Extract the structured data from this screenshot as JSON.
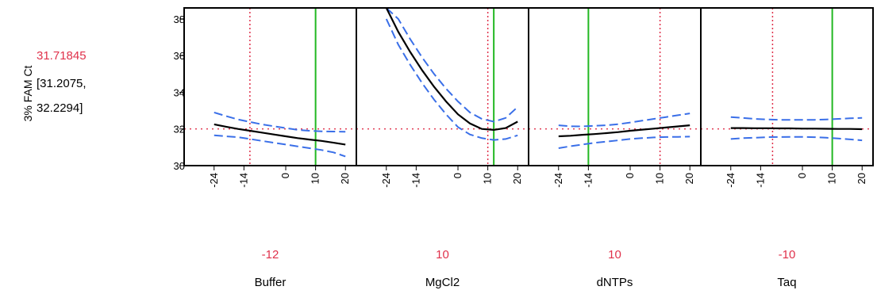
{
  "chart_data": {
    "type": "line",
    "response": {
      "label": "3% FAM Ct",
      "predicted": "31.71845",
      "ci_lower": "[31.2075,",
      "ci_upper": "32.2294]",
      "current_value": 32.0
    },
    "ylim": [
      30,
      38.6
    ],
    "y_ticks": [
      30,
      32,
      34,
      36,
      38
    ],
    "x_ticks": [
      "-24",
      "-14",
      "0",
      "10",
      "20"
    ],
    "xlim": [
      -25,
      21
    ],
    "factors": [
      {
        "name": "Buffer",
        "setting_label": "-12",
        "setting": -12,
        "reference": 10,
        "x": [
          -24,
          -20,
          -16,
          -12,
          -8,
          -4,
          0,
          4,
          8,
          12,
          16,
          20
        ],
        "fit": [
          32.25,
          32.12,
          32.0,
          31.9,
          31.8,
          31.7,
          31.6,
          31.5,
          31.42,
          31.35,
          31.25,
          31.15
        ],
        "upper": [
          32.9,
          32.7,
          32.52,
          32.38,
          32.25,
          32.15,
          32.05,
          31.95,
          31.9,
          31.87,
          31.86,
          31.85
        ],
        "lower": [
          31.65,
          31.6,
          31.55,
          31.45,
          31.35,
          31.25,
          31.15,
          31.05,
          30.95,
          30.85,
          30.72,
          30.5
        ]
      },
      {
        "name": "MgCl2",
        "setting_label": "10",
        "setting": 10,
        "reference": 12,
        "x": [
          -24,
          -20,
          -16,
          -12,
          -8,
          -4,
          0,
          4,
          8,
          12,
          16,
          20
        ],
        "fit": [
          38.6,
          37.3,
          36.2,
          35.2,
          34.3,
          33.5,
          32.8,
          32.3,
          32.0,
          31.95,
          32.05,
          32.4
        ],
        "upper": [
          38.6,
          38.0,
          36.9,
          35.9,
          35.0,
          34.2,
          33.5,
          32.9,
          32.55,
          32.4,
          32.6,
          33.2
        ],
        "lower": [
          38.0,
          36.6,
          35.5,
          34.5,
          33.6,
          32.8,
          32.1,
          31.7,
          31.5,
          31.4,
          31.45,
          31.65
        ]
      },
      {
        "name": "dNTPs",
        "setting_label": "10",
        "setting": 10,
        "reference": -14,
        "x": [
          -24,
          -20,
          -16,
          -12,
          -8,
          -4,
          0,
          4,
          8,
          12,
          16,
          20
        ],
        "fit": [
          31.6,
          31.63,
          31.68,
          31.72,
          31.77,
          31.83,
          31.9,
          31.96,
          32.02,
          32.08,
          32.14,
          32.2
        ],
        "upper": [
          32.2,
          32.15,
          32.14,
          32.17,
          32.2,
          32.26,
          32.35,
          32.45,
          32.55,
          32.65,
          32.75,
          32.85
        ],
        "lower": [
          30.95,
          31.06,
          31.15,
          31.24,
          31.31,
          31.38,
          31.45,
          31.5,
          31.54,
          31.56,
          31.57,
          31.58
        ]
      },
      {
        "name": "Taq",
        "setting_label": "-10",
        "setting": -10,
        "reference": 10,
        "x": [
          -24,
          -20,
          -16,
          -12,
          -8,
          -4,
          0,
          4,
          8,
          12,
          16,
          20
        ],
        "fit": [
          32.05,
          32.05,
          32.04,
          32.04,
          32.03,
          32.03,
          32.02,
          32.02,
          32.01,
          32.0,
          32.0,
          31.99
        ],
        "upper": [
          32.65,
          32.6,
          32.55,
          32.52,
          32.5,
          32.5,
          32.5,
          32.5,
          32.52,
          32.55,
          32.58,
          32.6
        ],
        "lower": [
          31.45,
          31.5,
          31.52,
          31.55,
          31.56,
          31.57,
          31.57,
          31.55,
          31.52,
          31.48,
          31.43,
          31.38
        ]
      }
    ],
    "colors": {
      "fit": "#000000",
      "ci": "#3a6fe8",
      "setting_line": "#e0314b",
      "reference_line": "#22b822",
      "current_y": "#e0314b",
      "text_highlight": "#e0314b"
    }
  }
}
